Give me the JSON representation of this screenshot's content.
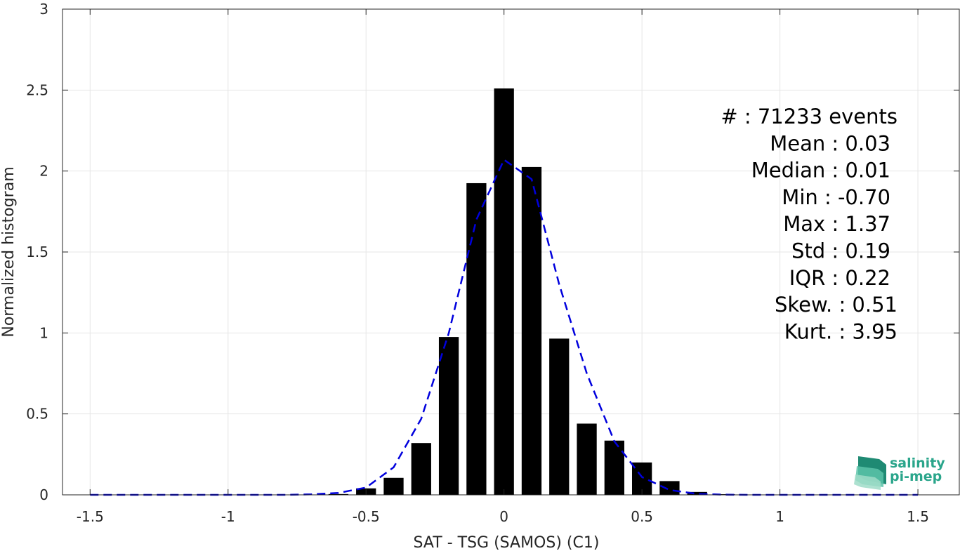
{
  "chart_data": {
    "type": "bar",
    "xlabel": "SAT - TSG (SAMOS) (C1)",
    "ylabel": "Normalized histogram",
    "xlim": [
      -1.6,
      1.65
    ],
    "ylim": [
      0,
      3
    ],
    "grid": true,
    "bar_width": 0.072,
    "x_ticks": [
      -1.5,
      -1,
      -0.5,
      0,
      0.5,
      1,
      1.5
    ],
    "x_tick_labels": [
      "-1.5",
      "-1",
      "-0.5",
      "0",
      "0.5",
      "1",
      "1.5"
    ],
    "y_ticks": [
      0,
      0.5,
      1,
      1.5,
      2,
      2.5,
      3
    ],
    "y_tick_labels": [
      "0",
      "0.5",
      "1",
      "1.5",
      "2",
      "2.5",
      "3"
    ],
    "series": [
      {
        "kind": "bar",
        "color": "#000000",
        "x": [
          -0.6,
          -0.5,
          -0.4,
          -0.3,
          -0.2,
          -0.1,
          0.0,
          0.1,
          0.2,
          0.3,
          0.4,
          0.5,
          0.6,
          0.7,
          0.8
        ],
        "values": [
          0.005,
          0.04,
          0.105,
          0.32,
          0.975,
          1.925,
          2.51,
          2.025,
          0.965,
          0.44,
          0.335,
          0.2,
          0.085,
          0.018,
          0.004
        ]
      },
      {
        "kind": "line",
        "style": "dashed",
        "color": "#0000dd",
        "x": [
          -1.5,
          -1.4,
          -1.3,
          -1.2,
          -1.1,
          -1.0,
          -0.9,
          -0.8,
          -0.7,
          -0.6,
          -0.5,
          -0.4,
          -0.3,
          -0.2,
          -0.1,
          0.0,
          0.1,
          0.2,
          0.3,
          0.4,
          0.5,
          0.6,
          0.7,
          0.8,
          0.9,
          1.0,
          1.1,
          1.2,
          1.3,
          1.4,
          1.5
        ],
        "values": [
          0,
          0,
          0,
          0,
          0,
          0,
          0,
          0,
          0.003,
          0.012,
          0.045,
          0.17,
          0.47,
          1.0,
          1.7,
          2.07,
          1.95,
          1.3,
          0.75,
          0.33,
          0.11,
          0.03,
          0.006,
          0.001,
          0,
          0,
          0,
          0,
          0,
          0,
          0
        ]
      }
    ],
    "annotations": [
      "#  : 71233 events",
      "Mean : 0.03",
      "Median : 0.01",
      "Min : -0.70",
      "Max : 1.37",
      "Std : 0.19",
      "IQR : 0.22",
      "Skew. : 0.51",
      "Kurt. : 3.95"
    ]
  },
  "logo": {
    "line1": "salinity",
    "line2": "pi-mep",
    "colors": [
      "#1f8a73",
      "#2aa58b",
      "#5cc3a9",
      "#9fdcc8"
    ]
  }
}
